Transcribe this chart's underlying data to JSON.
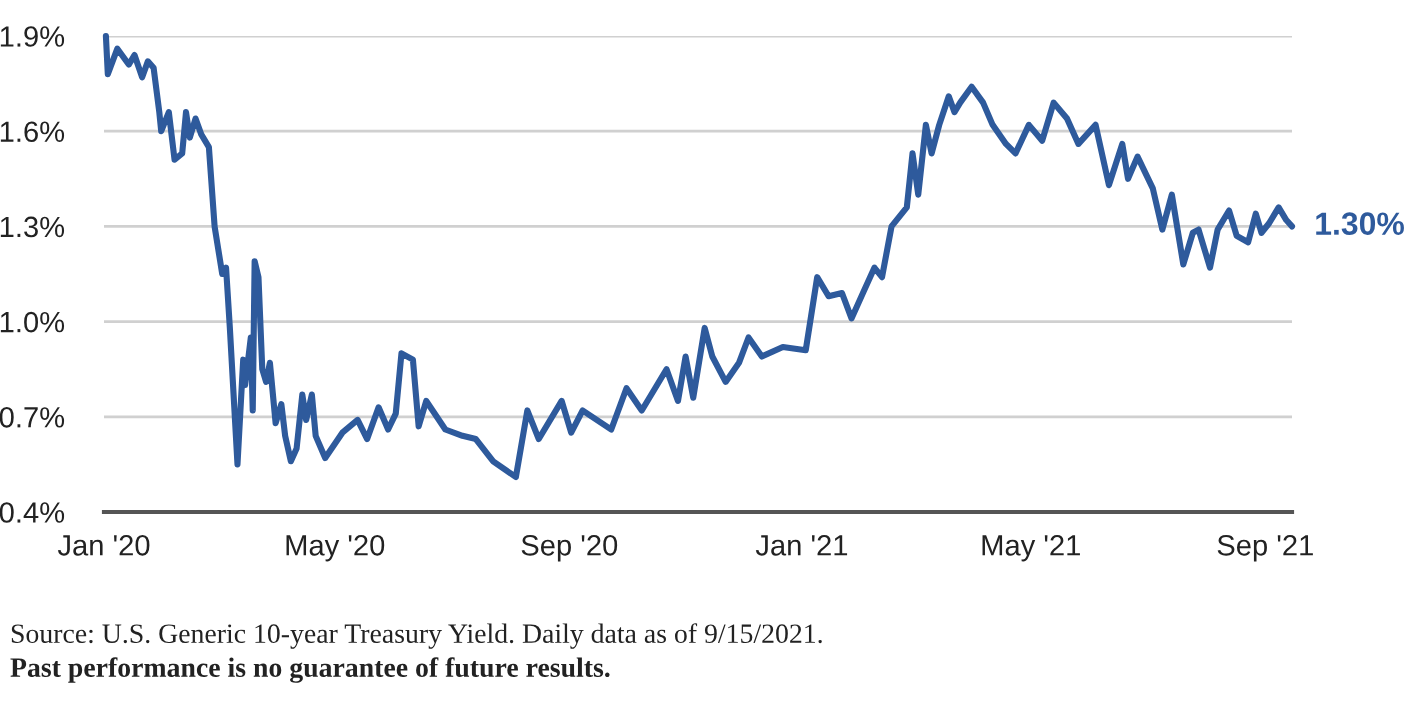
{
  "chart_data": {
    "type": "line",
    "x": [
      "2020-01-02",
      "2020-01-03",
      "2020-01-08",
      "2020-01-14",
      "2020-01-17",
      "2020-01-21",
      "2020-01-24",
      "2020-01-27",
      "2020-01-30",
      "2020-01-31",
      "2020-02-04",
      "2020-02-07",
      "2020-02-11",
      "2020-02-13",
      "2020-02-15",
      "2020-02-18",
      "2020-02-21",
      "2020-02-25",
      "2020-02-28",
      "2020-03-03",
      "2020-03-05",
      "2020-03-07",
      "2020-03-11",
      "2020-03-14",
      "2020-03-15",
      "2020-03-18",
      "2020-03-19",
      "2020-03-20",
      "2020-03-22",
      "2020-03-24",
      "2020-03-26",
      "2020-03-28",
      "2020-03-31",
      "2020-04-03",
      "2020-04-05",
      "2020-04-08",
      "2020-04-11",
      "2020-04-14",
      "2020-04-16",
      "2020-04-19",
      "2020-04-21",
      "2020-04-26",
      "2020-05-05",
      "2020-05-13",
      "2020-05-18",
      "2020-05-24",
      "2020-05-29",
      "2020-06-02",
      "2020-06-05",
      "2020-06-11",
      "2020-06-14",
      "2020-06-18",
      "2020-06-28",
      "2020-07-07",
      "2020-07-14",
      "2020-07-23",
      "2020-08-04",
      "2020-08-10",
      "2020-08-16",
      "2020-08-28",
      "2020-09-02",
      "2020-09-08",
      "2020-09-23",
      "2020-10-01",
      "2020-10-09",
      "2020-10-22",
      "2020-10-28",
      "2020-11-01",
      "2020-11-05",
      "2020-11-11",
      "2020-11-15",
      "2020-11-22",
      "2020-11-29",
      "2020-12-04",
      "2020-12-11",
      "2020-12-22",
      "2021-01-03",
      "2021-01-09",
      "2021-01-15",
      "2021-01-22",
      "2021-01-27",
      "2021-02-02",
      "2021-02-08",
      "2021-02-12",
      "2021-02-17",
      "2021-02-25",
      "2021-02-28",
      "2021-03-03",
      "2021-03-07",
      "2021-03-10",
      "2021-03-14",
      "2021-03-19",
      "2021-03-22",
      "2021-03-25",
      "2021-03-31",
      "2021-04-06",
      "2021-04-11",
      "2021-04-18",
      "2021-04-23",
      "2021-04-30",
      "2021-05-07",
      "2021-05-13",
      "2021-05-20",
      "2021-05-26",
      "2021-06-04",
      "2021-06-11",
      "2021-06-18",
      "2021-06-21",
      "2021-06-26",
      "2021-07-04",
      "2021-07-09",
      "2021-07-14",
      "2021-07-20",
      "2021-07-25",
      "2021-07-28",
      "2021-08-03",
      "2021-08-07",
      "2021-08-13",
      "2021-08-17",
      "2021-08-23",
      "2021-08-27",
      "2021-08-30",
      "2021-09-03",
      "2021-09-08",
      "2021-09-12",
      "2021-09-15"
    ],
    "series": [
      {
        "color": "#2e5a9c",
        "values": [
          1.9,
          1.78,
          1.86,
          1.81,
          1.84,
          1.77,
          1.82,
          1.8,
          1.66,
          1.6,
          1.66,
          1.51,
          1.53,
          1.66,
          1.58,
          1.64,
          1.59,
          1.55,
          1.3,
          1.15,
          1.17,
          0.98,
          0.55,
          0.88,
          0.8,
          0.95,
          0.72,
          1.19,
          1.14,
          0.85,
          0.81,
          0.87,
          0.68,
          0.74,
          0.64,
          0.56,
          0.6,
          0.77,
          0.69,
          0.77,
          0.64,
          0.57,
          0.65,
          0.69,
          0.63,
          0.73,
          0.66,
          0.71,
          0.9,
          0.88,
          0.67,
          0.75,
          0.66,
          0.64,
          0.63,
          0.56,
          0.51,
          0.72,
          0.63,
          0.75,
          0.65,
          0.72,
          0.66,
          0.79,
          0.72,
          0.85,
          0.75,
          0.89,
          0.76,
          0.98,
          0.89,
          0.81,
          0.87,
          0.95,
          0.89,
          0.92,
          0.91,
          1.14,
          1.08,
          1.09,
          1.01,
          1.09,
          1.17,
          1.14,
          1.3,
          1.36,
          1.53,
          1.4,
          1.62,
          1.53,
          1.62,
          1.71,
          1.66,
          1.69,
          1.74,
          1.69,
          1.62,
          1.56,
          1.53,
          1.62,
          1.57,
          1.69,
          1.64,
          1.56,
          1.62,
          1.43,
          1.56,
          1.45,
          1.52,
          1.42,
          1.29,
          1.4,
          1.18,
          1.28,
          1.29,
          1.17,
          1.29,
          1.35,
          1.27,
          1.25,
          1.34,
          1.28,
          1.31,
          1.36,
          1.32,
          1.3
        ]
      }
    ],
    "xlim": [
      "2020-01-01",
      "2021-09-15"
    ],
    "xticks": [
      {
        "value": "2020-01-01",
        "label": "Jan '20"
      },
      {
        "value": "2020-05-01",
        "label": "May '20"
      },
      {
        "value": "2020-09-01",
        "label": "Sep '20"
      },
      {
        "value": "2021-01-01",
        "label": "Jan '21"
      },
      {
        "value": "2021-05-01",
        "label": "May '21"
      },
      {
        "value": "2021-09-01",
        "label": "Sep '21"
      }
    ],
    "ylim": [
      0.4,
      1.9
    ],
    "yticks": [
      {
        "value": 0.4,
        "label": "0.4%"
      },
      {
        "value": 0.7,
        "label": "0.7%"
      },
      {
        "value": 1.0,
        "label": "1.0%"
      },
      {
        "value": 1.3,
        "label": "1.3%"
      },
      {
        "value": 1.6,
        "label": "1.6%"
      },
      {
        "value": 1.9,
        "label": "1.9%"
      }
    ],
    "grid": "y",
    "annotations": [
      {
        "text": "1.30%",
        "x": "2021-09-15",
        "y": 1.3
      },
      "Source: U.S. Generic 10-year Treasury Yield. Daily data as of 9/15/2021.",
      "Past performance is no guarantee of future results."
    ]
  }
}
